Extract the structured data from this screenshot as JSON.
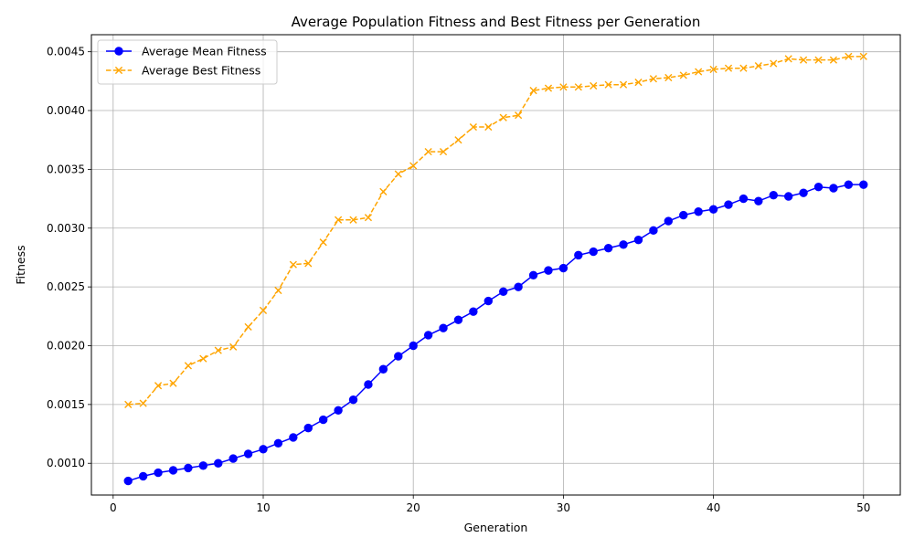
{
  "chart_data": {
    "type": "line",
    "title": "Average Population Fitness and Best Fitness per Generation",
    "xlabel": "Generation",
    "ylabel": "Fitness",
    "xlim": [
      -1.45,
      52.45
    ],
    "ylim": [
      0.00073,
      0.004645
    ],
    "xticks": [
      0,
      10,
      20,
      30,
      40,
      50
    ],
    "yticks": [
      0.001,
      0.0015,
      0.002,
      0.0025,
      0.003,
      0.0035,
      0.004,
      0.0045
    ],
    "xtick_labels": [
      "0",
      "10",
      "20",
      "30",
      "40",
      "50"
    ],
    "ytick_labels": [
      "0.0010",
      "0.0015",
      "0.0020",
      "0.0025",
      "0.0030",
      "0.0035",
      "0.0040",
      "0.0045"
    ],
    "grid": true,
    "legend_position": "top-left",
    "x": [
      1,
      2,
      3,
      4,
      5,
      6,
      7,
      8,
      9,
      10,
      11,
      12,
      13,
      14,
      15,
      16,
      17,
      18,
      19,
      20,
      21,
      22,
      23,
      24,
      25,
      26,
      27,
      28,
      29,
      30,
      31,
      32,
      33,
      34,
      35,
      36,
      37,
      38,
      39,
      40,
      41,
      42,
      43,
      44,
      45,
      46,
      47,
      48,
      49,
      50
    ],
    "series": [
      {
        "name": "Average Mean Fitness",
        "color": "#0000ff",
        "line_style": "solid",
        "marker": "circle",
        "values": [
          0.00085,
          0.00089,
          0.00092,
          0.00094,
          0.00096,
          0.00098,
          0.001,
          0.00104,
          0.00108,
          0.00112,
          0.00117,
          0.00122,
          0.0013,
          0.00137,
          0.00145,
          0.00154,
          0.00167,
          0.0018,
          0.00191,
          0.002,
          0.00209,
          0.00215,
          0.00222,
          0.00229,
          0.00238,
          0.00246,
          0.0025,
          0.0026,
          0.00264,
          0.00266,
          0.00277,
          0.0028,
          0.00283,
          0.00286,
          0.0029,
          0.00298,
          0.00306,
          0.00311,
          0.00314,
          0.00316,
          0.0032,
          0.00325,
          0.00323,
          0.00328,
          0.00327,
          0.0033,
          0.00335,
          0.00334,
          0.00337,
          0.00337
        ]
      },
      {
        "name": "Average Best Fitness",
        "color": "#ffa500",
        "line_style": "dashed",
        "marker": "x",
        "values": [
          0.0015,
          0.00151,
          0.00166,
          0.00168,
          0.00183,
          0.00189,
          0.00196,
          0.00199,
          0.00216,
          0.0023,
          0.00247,
          0.00269,
          0.0027,
          0.00288,
          0.00307,
          0.00307,
          0.00309,
          0.00331,
          0.00346,
          0.00353,
          0.00365,
          0.00365,
          0.00375,
          0.00386,
          0.00386,
          0.00394,
          0.00396,
          0.00417,
          0.00419,
          0.0042,
          0.0042,
          0.00421,
          0.00422,
          0.00422,
          0.00424,
          0.00427,
          0.00428,
          0.0043,
          0.00433,
          0.00435,
          0.00436,
          0.00436,
          0.00438,
          0.0044,
          0.00444,
          0.00443,
          0.00443,
          0.00443,
          0.00446,
          0.00446
        ]
      }
    ]
  }
}
